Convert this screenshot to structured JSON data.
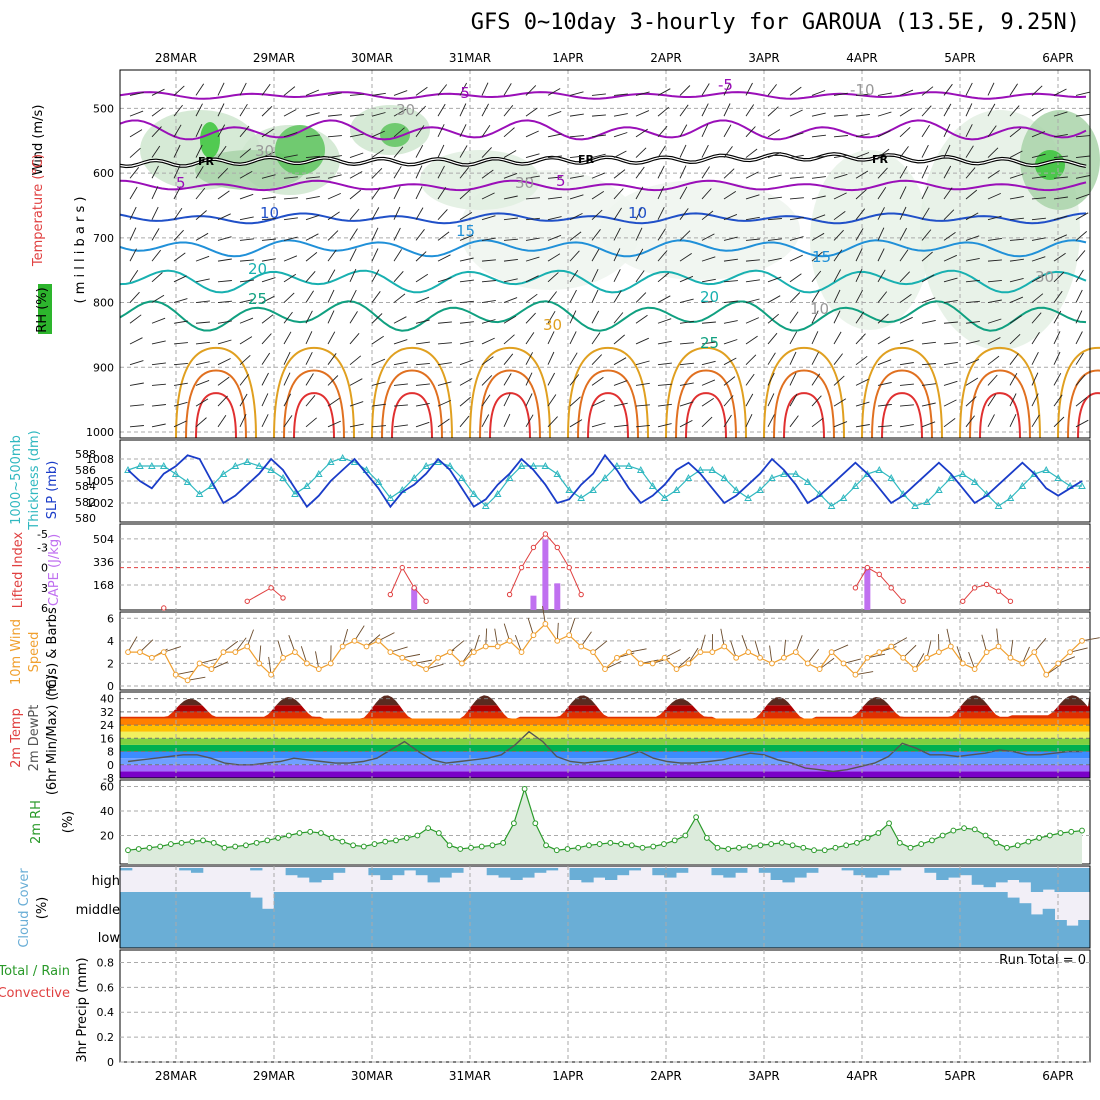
{
  "title": "GFS 0~10day 3-hourly for GAROUA (13.5E, 9.25N)",
  "dates": [
    "28MAR",
    "29MAR",
    "30MAR",
    "31MAR",
    "1APR",
    "2APR",
    "3APR",
    "4APR",
    "5APR",
    "6APR"
  ],
  "colors": {
    "rh_green": "#2db52d",
    "temp_purple": "#9a0fb8",
    "temp_blue": "#2050c8",
    "temp_sky": "#2090d8",
    "temp_teal": "#18b0b0",
    "temp_green": "#10a080",
    "temp_orange": "#e0a020",
    "temp_red": "#e03030",
    "thickness_cyan": "#30b8c0",
    "slp_blue": "#1a3cc8",
    "lifted_red": "#e04040",
    "cape_purple": "#c070f0",
    "wind_orange": "#f0a030",
    "rh2m_green": "#2a9a2a",
    "cloud_blue": "#6aaed6"
  },
  "panels": {
    "upper": {
      "ylabel_parts": [
        "RH (%)",
        "Temperature (°C)",
        "Wind (m/s)"
      ],
      "ylabel_mb": "( m i l l i b a r s )",
      "freezing_label": "FR",
      "contour_labels": [
        "-5",
        "-5",
        "-10",
        "5",
        "5",
        "10",
        "10",
        "15",
        "15",
        "20",
        "20",
        "25",
        "25",
        "30",
        "30",
        "30",
        "30",
        "10",
        "30"
      ]
    },
    "slp": {
      "ylabel_a": "1000~500mb",
      "ylabel_b": "Thickness (dm)",
      "ylabel_c": "SLP (mb)"
    },
    "cape": {
      "ylabel_a": "Lifted Index",
      "ylabel_b": "CAPE (J/kg)"
    },
    "wind10": {
      "ylabel_a": "10m Wind",
      "ylabel_b": "Speed",
      "ylabel_c": "(m/s) & Barbs"
    },
    "temp2m": {
      "ylabel_a": "2m Temp",
      "ylabel_b": "2m DewPt",
      "ylabel_c": "(6hr Min/Max) (°C)"
    },
    "rh2m": {
      "ylabel_a": "2m RH",
      "ylabel_b": "(%)"
    },
    "cloud": {
      "ylabel_a": "Cloud Cover",
      "ylabel_b": "(%)",
      "levels": [
        "high",
        "middle",
        "low"
      ]
    },
    "precip": {
      "ylabel_a": "Total / Rain",
      "ylabel_b": "Convective",
      "ylabel_c": "3hr Precip (mm)",
      "run_total": "Run Total = 0"
    }
  },
  "chart_data": [
    {
      "type": "heatmap",
      "panel": "upper-air",
      "y_ticks": [
        500,
        600,
        700,
        800,
        900,
        1000
      ],
      "ylim": [
        1000,
        450
      ],
      "freezing_level_mb_daily": [
        585,
        580,
        582,
        583,
        580,
        580,
        575,
        575,
        580,
        585
      ],
      "temperature_contours_c": [
        -10,
        -5,
        5,
        10,
        15,
        20,
        25,
        30
      ],
      "rh_contours_pct": [
        10,
        30,
        50,
        70,
        90
      ]
    },
    {
      "type": "line",
      "panel": "thickness-slp",
      "slp_ticks": [
        1002,
        1005,
        1008
      ],
      "thickness_ticks": [
        580,
        582,
        584,
        586,
        588
      ],
      "series": [
        {
          "name": "SLP",
          "values": [
            1006.5,
            1005.0,
            1004.0,
            1006.0,
            1007.0,
            1008.5,
            1008.0,
            1005.0,
            1002.0,
            1003.0,
            1004.5,
            1006.0,
            1008.0,
            1006.5,
            1004.0,
            1001.5,
            1003.0,
            1005.0,
            1006.5,
            1008.0,
            1006.0,
            1004.0,
            1001.5,
            1003.5,
            1004.5,
            1006.0,
            1008.0,
            1006.5,
            1004.0,
            1001.5,
            1002.5,
            1004.5,
            1006.0,
            1008.0,
            1006.5,
            1004.5,
            1002.0,
            1002.5,
            1004.5,
            1006.0,
            1008.5,
            1006.5,
            1004.0,
            1002.0,
            1003.0,
            1004.5,
            1006.5,
            1007.5,
            1006.0,
            1004.0,
            1002.0,
            1003.0,
            1004.5,
            1006.0,
            1008.0,
            1006.5,
            1004.5,
            1002.0,
            1003.0,
            1004.5,
            1006.0,
            1007.5,
            1006.0,
            1004.0,
            1002.0,
            1003.0,
            1004.5,
            1006.0,
            1007.5,
            1006.0,
            1004.0,
            1002.0,
            1003.0,
            1004.5,
            1006.0,
            1007.5,
            1006.0,
            1004.0,
            1003.0,
            1004.0,
            1005.0
          ]
        },
        {
          "name": "Thickness",
          "values": [
            586.0,
            586.5,
            586.5,
            586.5,
            585.5,
            584.5,
            583.0,
            584.0,
            585.5,
            586.5,
            587.0,
            586.5,
            586.0,
            585.0,
            583.0,
            584.0,
            585.5,
            587.0,
            587.5,
            587.0,
            586.0,
            584.5,
            582.5,
            583.5,
            585.0,
            586.5,
            587.0,
            586.5,
            585.0,
            583.0,
            581.5,
            583.0,
            585.0,
            586.5,
            586.5,
            586.5,
            585.5,
            583.5,
            582.5,
            583.5,
            585.0,
            586.5,
            586.5,
            586.0,
            584.0,
            582.5,
            583.5,
            585.0,
            586.0,
            586.0,
            585.0,
            583.5,
            582.5,
            583.5,
            585.0,
            585.5,
            585.5,
            584.5,
            583.0,
            581.5,
            582.5,
            584.0,
            585.5,
            586.0,
            585.0,
            583.0,
            581.5,
            582.0,
            583.5,
            585.0,
            585.5,
            584.5,
            583.0,
            581.5,
            582.5,
            584.0,
            585.5,
            586.0,
            585.0,
            584.0,
            584.0
          ]
        }
      ]
    },
    {
      "type": "bar",
      "panel": "cape-lifted-index",
      "lifted_index_ticks": [
        6,
        3,
        0,
        -3,
        -5
      ],
      "cape_ticks": [
        168,
        336,
        504
      ],
      "cape_bars": [
        {
          "x": 24,
          "value": 150
        },
        {
          "x": 34,
          "value": 90
        },
        {
          "x": 35,
          "value": 500
        },
        {
          "x": 36,
          "value": 180
        },
        {
          "x": 62,
          "value": 300
        }
      ],
      "lifted_index": [
        {
          "x": 3,
          "value": 6
        },
        {
          "x": 10,
          "value": 5
        },
        {
          "x": 12,
          "value": 3
        },
        {
          "x": 13,
          "value": 4.5
        },
        {
          "x": 22,
          "value": 4
        },
        {
          "x": 23,
          "value": 0
        },
        {
          "x": 24,
          "value": 3
        },
        {
          "x": 25,
          "value": 5
        },
        {
          "x": 32,
          "value": 4
        },
        {
          "x": 33,
          "value": 0
        },
        {
          "x": 34,
          "value": -3
        },
        {
          "x": 35,
          "value": -5
        },
        {
          "x": 36,
          "value": -3
        },
        {
          "x": 37,
          "value": 0
        },
        {
          "x": 38,
          "value": 4
        },
        {
          "x": 61,
          "value": 3
        },
        {
          "x": 62,
          "value": 0
        },
        {
          "x": 63,
          "value": 1
        },
        {
          "x": 64,
          "value": 3
        },
        {
          "x": 65,
          "value": 5
        },
        {
          "x": 70,
          "value": 5
        },
        {
          "x": 71,
          "value": 3
        },
        {
          "x": 72,
          "value": 2.5
        },
        {
          "x": 73,
          "value": 3.5
        },
        {
          "x": 74,
          "value": 5
        }
      ]
    },
    {
      "type": "line",
      "panel": "10m-wind",
      "y_ticks": [
        0,
        2,
        4,
        6
      ],
      "series": [
        {
          "name": "Speed",
          "values": [
            3.0,
            3.0,
            2.5,
            3.0,
            1.0,
            0.5,
            2.0,
            1.5,
            3.0,
            3.0,
            3.5,
            2.0,
            1.0,
            2.5,
            3.0,
            2.0,
            1.5,
            2.0,
            3.5,
            4.0,
            3.5,
            4.0,
            3.0,
            2.5,
            2.0,
            1.5,
            2.5,
            3.0,
            2.0,
            3.0,
            3.5,
            3.5,
            4.0,
            3.0,
            4.5,
            5.5,
            4.0,
            4.5,
            3.5,
            3.0,
            1.5,
            2.5,
            3.0,
            2.0,
            2.0,
            2.5,
            1.5,
            2.0,
            3.0,
            3.0,
            3.5,
            2.5,
            3.0,
            2.5,
            2.0,
            2.5,
            3.0,
            2.0,
            1.5,
            3.0,
            2.0,
            1.0,
            2.5,
            3.0,
            3.5,
            2.5,
            1.5,
            2.5,
            3.0,
            3.5,
            2.0,
            1.5,
            3.0,
            3.5,
            2.5,
            2.0,
            3.0,
            1.0,
            2.0,
            3.0,
            4.0
          ]
        }
      ]
    },
    {
      "type": "area",
      "panel": "2m-temperature",
      "y_ticks": [
        -8,
        0,
        8,
        16,
        24,
        32,
        40
      ],
      "band_colors": [
        "#7a00c8",
        "#a070ff",
        "#6fa0ff",
        "#3c8cff",
        "#00b050",
        "#80d040",
        "#f0f060",
        "#ffc000",
        "#ff8000",
        "#e03000",
        "#b00000",
        "#5a2a20"
      ],
      "band_edges": [
        -8,
        -4,
        0,
        4,
        8,
        12,
        16,
        20,
        24,
        28,
        32,
        36,
        44
      ],
      "temperature_daily_max": [
        40,
        41,
        42,
        42,
        42,
        40,
        41,
        41,
        42,
        42
      ],
      "temperature_daily_min": [
        29,
        29,
        28,
        28,
        29,
        29,
        28,
        29,
        29,
        30
      ],
      "dewpoint": [
        2,
        3,
        4,
        5,
        6,
        6,
        4,
        1,
        0,
        0,
        1,
        2,
        4,
        3,
        2,
        1,
        1,
        2,
        4,
        9,
        14,
        8,
        3,
        1,
        2,
        3,
        4,
        6,
        12,
        20,
        14,
        5,
        2,
        1,
        2,
        3,
        5,
        8,
        4,
        2,
        1,
        1,
        2,
        3,
        5,
        7,
        6,
        3,
        1,
        -2,
        -3,
        -4,
        -3,
        -1,
        1,
        5,
        13,
        10,
        6,
        6,
        5,
        6,
        7,
        9,
        8,
        6,
        6,
        7,
        8,
        8
      ]
    },
    {
      "type": "area",
      "panel": "2m-rh",
      "y_ticks": [
        20,
        40,
        60
      ],
      "values": [
        8,
        9,
        10,
        11,
        13,
        14,
        15,
        16,
        14,
        10,
        11,
        12,
        14,
        16,
        18,
        20,
        22,
        23,
        22,
        18,
        15,
        12,
        11,
        13,
        15,
        16,
        18,
        20,
        26,
        22,
        12,
        9,
        10,
        11,
        12,
        14,
        30,
        58,
        30,
        12,
        8,
        9,
        10,
        12,
        13,
        14,
        13,
        12,
        10,
        11,
        13,
        16,
        20,
        35,
        18,
        10,
        9,
        10,
        11,
        12,
        13,
        14,
        12,
        10,
        8,
        8,
        10,
        12,
        14,
        18,
        22,
        30,
        14,
        10,
        13,
        16,
        20,
        24,
        26,
        25,
        20,
        14,
        10,
        12,
        15,
        18,
        20,
        22,
        23,
        24
      ]
    },
    {
      "type": "area",
      "panel": "cloud-cover",
      "levels": [
        "high",
        "middle",
        "low"
      ],
      "high_pct": [
        10,
        0,
        0,
        0,
        0,
        10,
        20,
        0,
        0,
        0,
        0,
        10,
        0,
        0,
        30,
        40,
        60,
        50,
        20,
        0,
        0,
        30,
        50,
        30,
        10,
        30,
        60,
        40,
        20,
        0,
        0,
        30,
        40,
        50,
        40,
        20,
        10,
        0,
        50,
        60,
        40,
        50,
        30,
        10,
        0,
        30,
        40,
        20,
        0,
        0,
        30,
        40,
        20,
        0,
        20,
        50,
        60,
        40,
        20,
        0,
        0,
        10,
        30,
        40,
        30,
        10,
        0,
        0,
        20,
        50,
        40,
        30,
        70,
        80,
        60,
        50,
        60,
        100,
        90,
        100,
        100,
        100
      ],
      "middle_pct": [
        100,
        100,
        100,
        100,
        100,
        100,
        100,
        100,
        100,
        100,
        100,
        90,
        70,
        100,
        100,
        100,
        100,
        100,
        100,
        100,
        100,
        100,
        100,
        100,
        100,
        100,
        100,
        100,
        100,
        100,
        100,
        100,
        100,
        100,
        100,
        100,
        100,
        100,
        100,
        100,
        100,
        100,
        100,
        100,
        100,
        100,
        100,
        100,
        100,
        100,
        100,
        100,
        100,
        100,
        100,
        100,
        100,
        100,
        100,
        100,
        100,
        100,
        100,
        100,
        100,
        100,
        100,
        100,
        100,
        100,
        100,
        100,
        100,
        100,
        100,
        90,
        80,
        60,
        70,
        50,
        40,
        50
      ]
    },
    {
      "type": "bar",
      "panel": "3hr-precip",
      "y_ticks": [
        0,
        0.2,
        0.4,
        0.6,
        0.8
      ],
      "ylim": [
        0,
        0.9
      ],
      "values": []
    }
  ]
}
